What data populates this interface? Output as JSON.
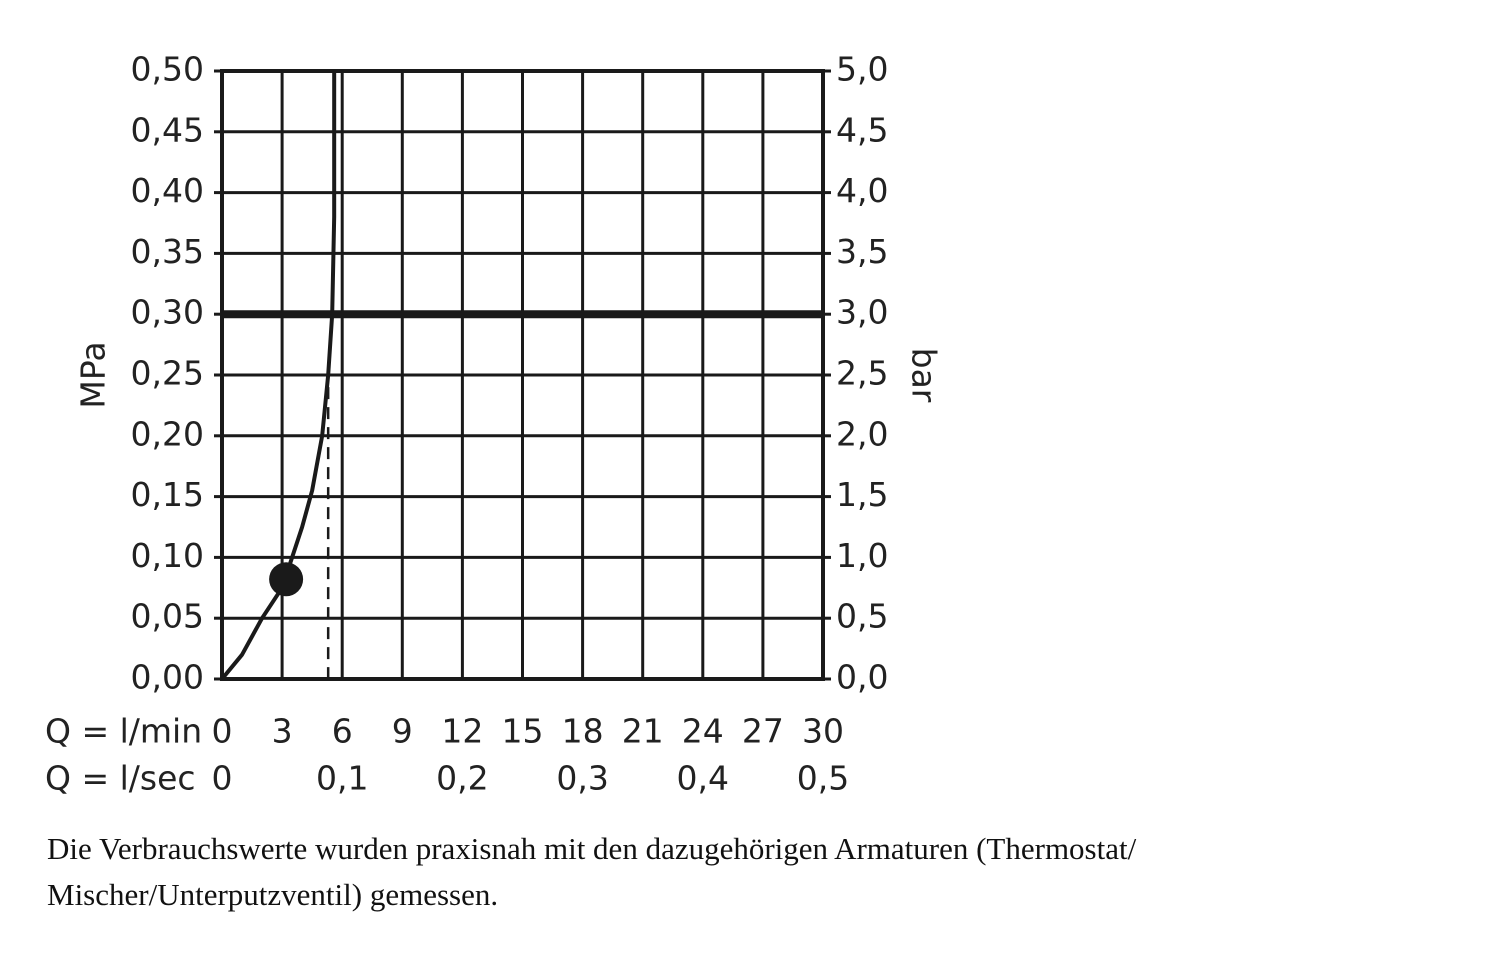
{
  "chart_data": {
    "type": "line",
    "ylabel": "MPa",
    "y2label": "bar",
    "xlabel": "Q = l/min",
    "x2label": "Q = l/sec",
    "xlim": [
      0,
      30
    ],
    "xticks": [
      0,
      3,
      6,
      9,
      12,
      15,
      18,
      21,
      24,
      27,
      30
    ],
    "x2lim": [
      0,
      0.5
    ],
    "x2ticks": [
      0,
      {
        "value": 0.1,
        "label": "0,1"
      },
      {
        "value": 0.2,
        "label": "0,2"
      },
      {
        "value": 0.3,
        "label": "0,3"
      },
      {
        "value": 0.4,
        "label": "0,4"
      },
      {
        "value": 0.5,
        "label": "0,5"
      }
    ],
    "ylim": [
      0,
      0.5
    ],
    "yticks": [
      {
        "value": 0,
        "label": "0,00"
      },
      {
        "value": 0.05,
        "label": "0,05"
      },
      {
        "value": 0.1,
        "label": "0,10"
      },
      {
        "value": 0.15,
        "label": "0,15"
      },
      {
        "value": 0.2,
        "label": "0,20"
      },
      {
        "value": 0.25,
        "label": "0,25"
      },
      {
        "value": 0.3,
        "label": "0,30"
      },
      {
        "value": 0.35,
        "label": "0,35"
      },
      {
        "value": 0.4,
        "label": "0,40"
      },
      {
        "value": 0.45,
        "label": "0,45"
      },
      {
        "value": 0.5,
        "label": "0,50"
      }
    ],
    "y2lim": [
      0,
      5
    ],
    "y2ticks": [
      {
        "value": 0,
        "label": "0,0"
      },
      {
        "value": 0.5,
        "label": "0,5"
      },
      {
        "value": 1,
        "label": "1,0"
      },
      {
        "value": 1.5,
        "label": "1,5"
      },
      {
        "value": 2,
        "label": "2,0"
      },
      {
        "value": 2.5,
        "label": "2,5"
      },
      {
        "value": 3,
        "label": "3,0"
      },
      {
        "value": 3.5,
        "label": "3,5"
      },
      {
        "value": 4,
        "label": "4,0"
      },
      {
        "value": 4.5,
        "label": "4,5"
      },
      {
        "value": 5,
        "label": "5,0"
      }
    ],
    "grid": true,
    "series": [
      {
        "color": "#1a1a1a",
        "x": [
          0,
          1,
          2,
          3,
          3.5,
          4,
          4.5,
          5,
          5.3,
          5.5,
          5.6,
          5.6
        ],
        "values": [
          0,
          0.02,
          0.05,
          0.075,
          0.1,
          0.125,
          0.155,
          0.2,
          0.25,
          0.3,
          0.38,
          0.5
        ]
      }
    ],
    "threshold": 0.3,
    "marker": {
      "x": 3.2,
      "y": 0.082
    },
    "dashed_drop": {
      "x": 5.3,
      "y": 0.24
    }
  },
  "caption": [
    "Die Verbrauchswerte wurden praxisnah mit den dazugehörigen Armaturen (Thermostat/",
    "Mischer/Unterputzventil) gemessen."
  ]
}
